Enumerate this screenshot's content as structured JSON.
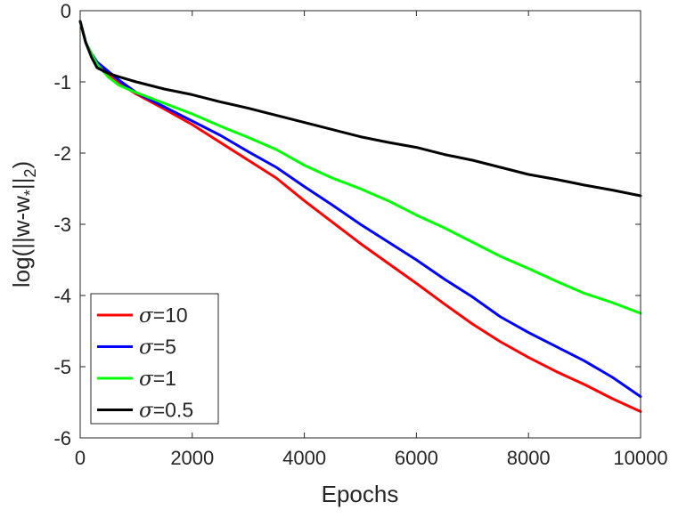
{
  "chart_data": {
    "type": "line",
    "xlabel": "Epochs",
    "ylabel": "log(||w-w*||2)",
    "ylabel_parts": {
      "prefix": "log(||w-w",
      "sub": "*",
      "middle": "||",
      "sub2": "2",
      "suffix": ")"
    },
    "xlim": [
      0,
      10000
    ],
    "ylim": [
      -6,
      0
    ],
    "xticks": [
      0,
      2000,
      4000,
      6000,
      8000,
      10000
    ],
    "xtick_labels": [
      "0",
      "2000",
      "4000",
      "6000",
      "8000",
      "10000"
    ],
    "yticks": [
      0,
      -1,
      -2,
      -3,
      -4,
      -5,
      -6
    ],
    "ytick_labels": [
      "0",
      "-1",
      "-2",
      "-3",
      "-4",
      "-5",
      "-6"
    ],
    "grid": false,
    "legend_position": "bottom-left",
    "series": [
      {
        "name": "σ=10",
        "symbol": "σ",
        "value_text": "=10",
        "color": "#ff0000",
        "x": [
          0,
          100,
          200,
          300,
          500,
          700,
          1000,
          1500,
          2000,
          2500,
          3000,
          3500,
          4000,
          4500,
          5000,
          5500,
          6000,
          6500,
          7000,
          7500,
          8000,
          8500,
          9000,
          9500,
          10000
        ],
        "y": [
          -0.15,
          -0.45,
          -0.62,
          -0.75,
          -0.9,
          -1.02,
          -1.17,
          -1.38,
          -1.6,
          -1.85,
          -2.1,
          -2.35,
          -2.67,
          -2.97,
          -3.27,
          -3.55,
          -3.83,
          -4.12,
          -4.4,
          -4.65,
          -4.87,
          -5.07,
          -5.25,
          -5.45,
          -5.63
        ]
      },
      {
        "name": "σ=5",
        "symbol": "σ",
        "value_text": "=5",
        "color": "#0000ff",
        "x": [
          0,
          100,
          200,
          300,
          500,
          700,
          1000,
          1500,
          2000,
          2500,
          3000,
          3500,
          4000,
          4500,
          5000,
          5500,
          6000,
          6500,
          7000,
          7500,
          8000,
          8500,
          9000,
          9500,
          10000
        ],
        "y": [
          -0.15,
          -0.45,
          -0.6,
          -0.72,
          -0.85,
          -0.98,
          -1.15,
          -1.35,
          -1.55,
          -1.75,
          -1.98,
          -2.2,
          -2.47,
          -2.73,
          -3.0,
          -3.25,
          -3.5,
          -3.77,
          -4.02,
          -4.3,
          -4.52,
          -4.72,
          -4.92,
          -5.15,
          -5.42
        ]
      },
      {
        "name": "σ=1",
        "symbol": "σ",
        "value_text": "=1",
        "color": "#00ff00",
        "x": [
          0,
          100,
          200,
          300,
          500,
          700,
          1000,
          1500,
          2000,
          2500,
          3000,
          3500,
          4000,
          4500,
          5000,
          5500,
          6000,
          6500,
          7000,
          7500,
          8000,
          8500,
          9000,
          9500,
          10000
        ],
        "y": [
          -0.15,
          -0.45,
          -0.6,
          -0.75,
          -0.93,
          -1.05,
          -1.15,
          -1.3,
          -1.45,
          -1.62,
          -1.78,
          -1.95,
          -2.17,
          -2.35,
          -2.5,
          -2.67,
          -2.87,
          -3.05,
          -3.25,
          -3.45,
          -3.62,
          -3.8,
          -3.97,
          -4.1,
          -4.25
        ]
      },
      {
        "name": "σ=0.5",
        "symbol": "σ",
        "value_text": "=0.5",
        "color": "#000000",
        "x": [
          0,
          100,
          200,
          300,
          500,
          700,
          1000,
          1500,
          2000,
          2500,
          3000,
          3500,
          4000,
          4500,
          5000,
          5500,
          6000,
          6500,
          7000,
          7500,
          8000,
          8500,
          9000,
          9500,
          10000
        ],
        "y": [
          -0.15,
          -0.45,
          -0.65,
          -0.8,
          -0.88,
          -0.93,
          -1.0,
          -1.1,
          -1.18,
          -1.28,
          -1.37,
          -1.47,
          -1.57,
          -1.67,
          -1.77,
          -1.85,
          -1.92,
          -2.02,
          -2.1,
          -2.2,
          -2.3,
          -2.37,
          -2.45,
          -2.52,
          -2.6
        ]
      }
    ]
  }
}
